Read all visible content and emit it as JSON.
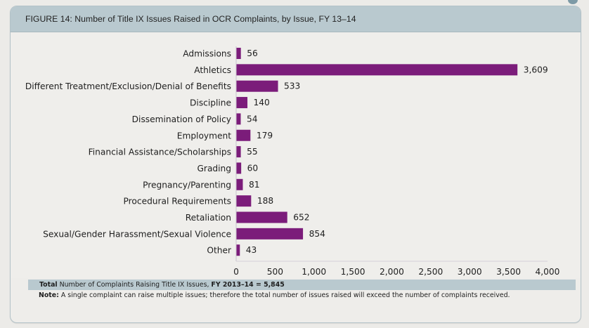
{
  "figure": {
    "title": "FIGURE 14: Number of Title IX Issues Raised in OCR Complaints, by Issue, FY 13–14"
  },
  "chart_data": {
    "type": "bar",
    "orientation": "horizontal",
    "title": "FIGURE 14: Number of Title IX Issues Raised in OCR Complaints, by Issue, FY 13–14",
    "xlabel": "",
    "ylabel": "",
    "xlim": [
      0,
      4000
    ],
    "x_ticks": [
      0,
      500,
      1000,
      1500,
      2000,
      2500,
      3000,
      3500,
      4000
    ],
    "x_tick_labels": [
      "0",
      "500",
      "1,000",
      "1,500",
      "2,000",
      "2,500",
      "3,000",
      "3,500",
      "4,000"
    ],
    "grid": false,
    "bar_color": "#7b1c7a",
    "categories": [
      "Admissions",
      "Athletics",
      "Different Treatment/Exclusion/Denial of Benefits",
      "Discipline",
      "Dissemination of Policy",
      "Employment",
      "Financial Assistance/Scholarships",
      "Grading",
      "Pregnancy/Parenting",
      "Procedural Requirements",
      "Retaliation",
      "Sexual/Gender Harassment/Sexual Violence",
      "Other"
    ],
    "values": [
      56,
      3609,
      533,
      140,
      54,
      179,
      55,
      60,
      81,
      188,
      652,
      854,
      43
    ],
    "value_labels": [
      "56",
      "3,609",
      "533",
      "140",
      "54",
      "179",
      "55",
      "60",
      "81",
      "188",
      "652",
      "854",
      "43"
    ]
  },
  "footer": {
    "total_bold": "Total",
    "total_text": " Number of Complaints Raising Title IX Issues, ",
    "total_fy_bold": "FY 2013–14 = 5,845",
    "note_bold": "Note:",
    "note_text": " A single complaint can raise multiple issues; therefore the total number of issues raised will exceed the number of complaints received."
  }
}
